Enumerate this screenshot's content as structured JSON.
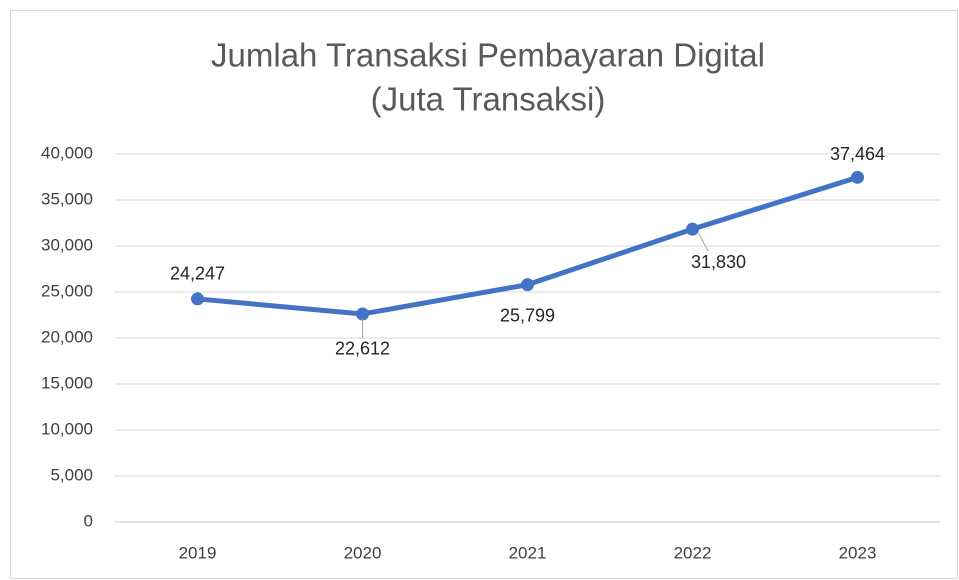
{
  "chart_data": {
    "type": "line",
    "title": [
      "Jumlah Transaksi Pembayaran Digital",
      "(Juta Transaksi)"
    ],
    "categories": [
      "2019",
      "2020",
      "2021",
      "2022",
      "2023"
    ],
    "series": [
      {
        "name": "Jumlah Transaksi",
        "color": "#4472c4",
        "values": [
          24247,
          22612,
          25799,
          31830,
          37464
        ],
        "value_labels": [
          "24,247",
          "22,612",
          "25,799",
          "31,830",
          "37,464"
        ]
      }
    ],
    "ylim": [
      0,
      40000
    ],
    "yticks": [
      0,
      {
        "value": 5000,
        "label": "5,000"
      },
      {
        "value": 10000,
        "label": "10,000"
      },
      {
        "value": 15000,
        "label": "15,000"
      },
      {
        "value": 20000,
        "label": "20,000"
      },
      {
        "value": 25000,
        "label": "25,000"
      },
      {
        "value": 30000,
        "label": "30,000"
      },
      {
        "value": 35000,
        "label": "35,000"
      },
      {
        "value": 40000,
        "label": "40,000"
      }
    ],
    "grid": true
  }
}
